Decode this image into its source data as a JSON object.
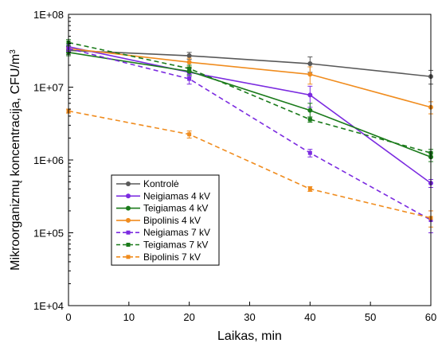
{
  "chart_data": {
    "type": "line",
    "title": "",
    "xlabel": "Laikas, min",
    "ylabel": "Mikroorganizmų koncentracija, CFU/m",
    "ylabel_superscript": "3",
    "x": [
      0,
      20,
      40,
      60
    ],
    "xlim": [
      0,
      60
    ],
    "ylim": [
      10000,
      100000000
    ],
    "yscale": "log",
    "xticks": [
      "0",
      "10",
      "20",
      "30",
      "40",
      "50",
      "60"
    ],
    "xtick_values": [
      0,
      10,
      20,
      30,
      40,
      50,
      60
    ],
    "yticks": [
      "1E+04",
      "1E+05",
      "1E+06",
      "1E+07",
      "1E+08"
    ],
    "ytick_values": [
      10000,
      100000,
      1000000,
      10000000,
      100000000
    ],
    "grid": false,
    "legend_position": "lower-left",
    "series": [
      {
        "name": "Kontrolė",
        "color": "#595959",
        "dash": "solid",
        "values": [
          32000000,
          27000000,
          21000000,
          14000000
        ],
        "errors": [
          4000000,
          3000000,
          5000000,
          3000000
        ]
      },
      {
        "name": "Neigiamas 4 kV",
        "color": "#7b2be0",
        "dash": "solid",
        "values": [
          36000000,
          16000000,
          7800000,
          480000
        ],
        "errors": [
          3000000,
          2000000,
          2500000,
          60000
        ]
      },
      {
        "name": "Teigiamas 4 kV",
        "color": "#1a7a1a",
        "dash": "solid",
        "values": [
          30000000,
          16500000,
          4800000,
          1100000
        ],
        "errors": [
          3000000,
          2000000,
          1200000,
          150000
        ]
      },
      {
        "name": "Bipolinis 4 kV",
        "color": "#f08c1e",
        "dash": "solid",
        "values": [
          34000000,
          22000000,
          15000000,
          5300000
        ],
        "errors": [
          3000000,
          3000000,
          4000000,
          1000000
        ]
      },
      {
        "name": "Neigiamas 7 kV",
        "color": "#7b2be0",
        "dash": "dashed",
        "values": [
          34000000,
          13000000,
          1250000,
          150000
        ],
        "errors": [
          3000000,
          2000000,
          150000,
          50000
        ]
      },
      {
        "name": "Teigiamas 7 kV",
        "color": "#1a7a1a",
        "dash": "dashed",
        "values": [
          41000000,
          18000000,
          3600000,
          1250000
        ],
        "errors": [
          4000000,
          2000000,
          300000,
          150000
        ]
      },
      {
        "name": "Bipolinis 7 kV",
        "color": "#f08c1e",
        "dash": "dashed",
        "values": [
          4700000,
          2250000,
          400000,
          160000
        ],
        "errors": [
          300000,
          250000,
          30000,
          40000
        ]
      }
    ]
  }
}
